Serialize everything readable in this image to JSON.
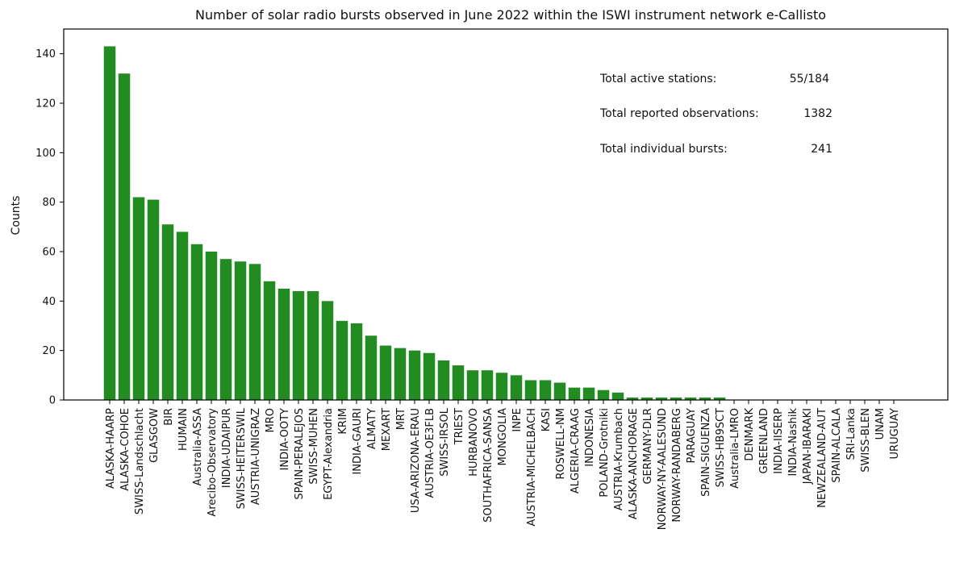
{
  "chart_data": {
    "type": "bar",
    "title": "Number of solar radio bursts observed in June 2022 within the ISWI instrument network e-Callisto",
    "xlabel": "",
    "ylabel": "Counts",
    "ylim": [
      0,
      150
    ],
    "yticks": [
      0,
      20,
      40,
      60,
      80,
      100,
      120,
      140
    ],
    "bar_color": "#228B22",
    "categories": [
      "ALASKA-HAARP",
      "ALASKA-COHOE",
      "SWISS-Landschlacht",
      "GLASGOW",
      "BIR",
      "HUMAIN",
      "Australia-ASSA",
      "Arecibo-Observatory",
      "INDIA-UDAIPUR",
      "SWISS-HEITERSWIL",
      "AUSTRIA-UNIGRAZ",
      "MRO",
      "INDIA-OOTY",
      "SPAIN-PERALEJOS",
      "SWISS-MUHEN",
      "EGYPT-Alexandria",
      "KRIM",
      "INDIA-GAURI",
      "ALMATY",
      "MEXART",
      "MRT",
      "USA-ARIZONA-ERAU",
      "AUSTRIA-OE3FLB",
      "SWISS-IRSOL",
      "TRIEST",
      "HURBANOVO",
      "SOUTHAFRICA-SANSA",
      "MONGOLIA",
      "INPE",
      "AUSTRIA-MICHELBACH",
      "KASI",
      "ROSWELL-NM",
      "ALGERIA-CRAAG",
      "INDONESIA",
      "POLAND-Grotniki",
      "AUSTRIA-Krumbach",
      "ALASKA-ANCHORAGE",
      "GERMANY-DLR",
      "NORWAY-NY-AALESUND",
      "NORWAY-RANDABERG",
      "PARAGUAY",
      "SPAIN-SIGUENZA",
      "SWISS-HB9SCT",
      "Australia-LMRO",
      "DENMARK",
      "GREENLAND",
      "INDIA-IISERP",
      "INDIA-Nashik",
      "JAPAN-IBARAKI",
      "NEWZEALAND-AUT",
      "SPAIN-ALCALA",
      "SRI-Lanka",
      "SWISS-BLEN",
      "UNAM",
      "URUGUAY"
    ],
    "values": [
      143,
      132,
      82,
      81,
      71,
      68,
      63,
      60,
      57,
      56,
      55,
      48,
      45,
      44,
      44,
      40,
      32,
      31,
      26,
      22,
      21,
      20,
      19,
      16,
      14,
      12,
      12,
      11,
      10,
      8,
      8,
      7,
      5,
      5,
      4,
      3,
      1,
      1,
      1,
      1,
      1,
      1,
      1,
      0,
      0,
      0,
      0,
      0,
      0,
      0,
      0,
      0,
      0,
      0,
      0
    ],
    "grid": false,
    "annotations": [
      {
        "label": "Total active stations:",
        "value": "55/184"
      },
      {
        "label": "Total reported observations:",
        "value": "1382"
      },
      {
        "label": "Total individual bursts:",
        "value": "241"
      }
    ]
  }
}
